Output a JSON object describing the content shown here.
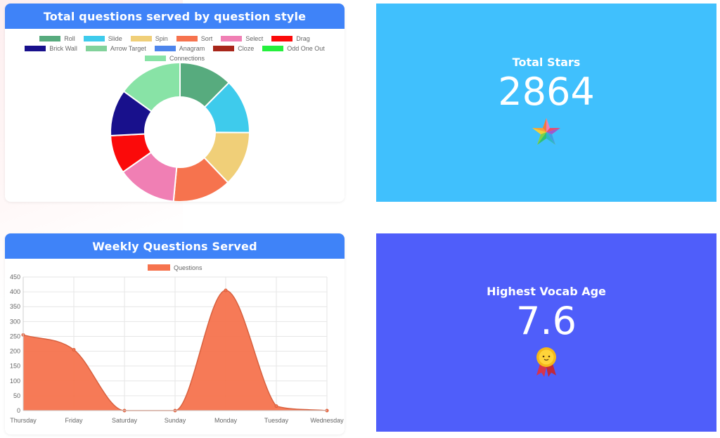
{
  "donut_card": {
    "title": "Total questions served by question style",
    "legend": [
      {
        "label": "Roll",
        "color": "#57ab7e"
      },
      {
        "label": "Slide",
        "color": "#3ecbec"
      },
      {
        "label": "Spin",
        "color": "#f0cf78"
      },
      {
        "label": "Sort",
        "color": "#f6734e"
      },
      {
        "label": "Select",
        "color": "#f07fb4"
      },
      {
        "label": "Drag",
        "color": "#fb0a0a"
      },
      {
        "label": "Brick Wall",
        "color": "#18108c"
      },
      {
        "label": "Arrow Target",
        "color": "#82d29b"
      },
      {
        "label": "Anagram",
        "color": "#4d85ec"
      },
      {
        "label": "Cloze",
        "color": "#a8261a"
      },
      {
        "label": "Odd One Out",
        "color": "#25f03d"
      },
      {
        "label": "Connections",
        "color": "#88e3a6"
      }
    ]
  },
  "weekly_card": {
    "title": "Weekly Questions Served",
    "legend_label": "Questions",
    "series_color": "#f6734e"
  },
  "stars_card": {
    "title": "Total Stars",
    "value": "2864",
    "icon": "colorful-star-icon"
  },
  "vocab_card": {
    "title": "Highest Vocab Age",
    "value": "7.6",
    "icon": "award-medal-icon"
  },
  "chart_data": [
    {
      "type": "pie",
      "variant": "doughnut",
      "title": "Total questions served by question style",
      "labels": [
        "Roll",
        "Slide",
        "Spin",
        "Sort",
        "Select",
        "Drag",
        "Brick Wall",
        "Arrow Target",
        "Anagram",
        "Cloze",
        "Odd One Out",
        "Connections"
      ],
      "values": [
        12.4,
        12.7,
        12.8,
        13.6,
        13.8,
        8.9,
        10.8,
        0,
        0,
        0,
        0,
        15.0
      ],
      "colors": [
        "#57ab7e",
        "#3ecbec",
        "#f0cf78",
        "#f6734e",
        "#f07fb4",
        "#fb0a0a",
        "#18108c",
        "#82d29b",
        "#4d85ec",
        "#a8261a",
        "#25f03d",
        "#88e3a6"
      ],
      "legend_position": "top"
    },
    {
      "type": "area",
      "title": "Weekly Questions Served",
      "categories": [
        "Thursday",
        "Friday",
        "Saturday",
        "Sunday",
        "Monday",
        "Tuesday",
        "Wednesday"
      ],
      "series": [
        {
          "name": "Questions",
          "values": [
            255,
            205,
            0,
            0,
            405,
            15,
            0
          ],
          "color": "#f6734e"
        }
      ],
      "ylim": [
        0,
        450
      ],
      "yticks": [
        0,
        50,
        100,
        150,
        200,
        250,
        300,
        350,
        400,
        450
      ],
      "grid": true,
      "legend_position": "top"
    }
  ]
}
